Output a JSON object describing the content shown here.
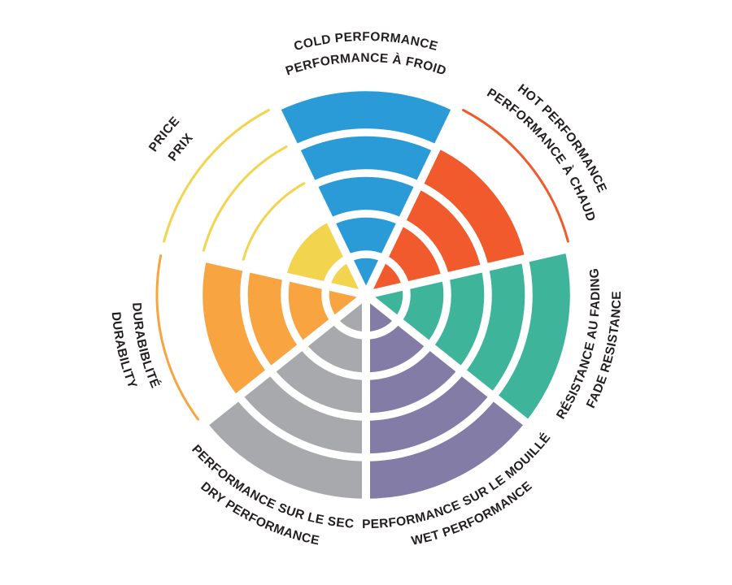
{
  "page": {
    "background": "#ffffff",
    "description_label": "Tire performance rating wheel"
  },
  "chart_data": {
    "type": "radial-bar",
    "variant": "segmented-sector-wheel",
    "rings": 5,
    "scale": {
      "min": 0,
      "max": 5
    },
    "grid": "white ring gaps inside filled sectors; thin colored arcs mark unfilled ring levels",
    "legend_position": "labels-around-rim",
    "text_color": "#231F20",
    "sectors": [
      {
        "id": "cold-performance",
        "label_en": "COLD PERFORMANCE",
        "label_fr": "PERFORMANCE À FROID",
        "value": 5,
        "color": "#2B9BD7"
      },
      {
        "id": "hot-performance",
        "label_en": "HOT PERFORMANCE",
        "label_fr": "PERFORMANCE À CHAUD",
        "value": 4,
        "color": "#F05A2C"
      },
      {
        "id": "fade-resistance",
        "label_en": "FADE RESISTANCE",
        "label_fr": "RÉSISTANCE AU FADING",
        "value": 5,
        "color": "#3EB49B"
      },
      {
        "id": "wet-performance",
        "label_en": "WET PERFORMANCE",
        "label_fr": "PERFORMANCE SUR LE MOUILLÉ",
        "value": 5,
        "color": "#827CA7"
      },
      {
        "id": "dry-performance",
        "label_en": "DRY PERFORMANCE",
        "label_fr": "PERFORMANCE SUR LE SEC",
        "value": 5,
        "color": "#A8A9AC"
      },
      {
        "id": "durability",
        "label_en": "DURABILITY",
        "label_fr": "DURABIBLITÉ",
        "value": 4,
        "color": "#F7A441"
      },
      {
        "id": "price",
        "label_en": "PRICE",
        "label_fr": "PRIX",
        "value": 2,
        "color": "#F2D44F"
      }
    ]
  }
}
